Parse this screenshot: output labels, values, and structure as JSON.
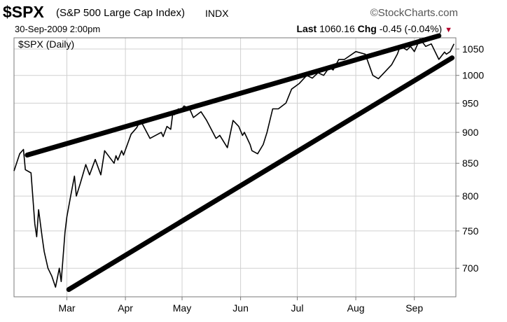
{
  "header": {
    "symbol": "$SPX",
    "name": "(S&P 500 Large Cap Index)",
    "exchange": "INDX",
    "brand": "©StockCharts.com",
    "datetime": "30-Sep-2009 2:00pm",
    "last_label": "Last",
    "last_value": "1060.16",
    "chg_label": "Chg",
    "chg_value": "-0.45 (-0.04%)",
    "chg_arrow": "▼",
    "panel_label": "$SPX (Daily)"
  },
  "colors": {
    "price": "#000000",
    "trend": "#000000",
    "grid": "#d0d0d0",
    "frame": "#7a7a7a",
    "down": "#b2002a"
  },
  "chart_data": {
    "type": "line",
    "title": "$SPX (S&P 500 Large Cap Index)",
    "scale": "log",
    "ylim": [
      664,
      1072
    ],
    "y_ticks": [
      700,
      750,
      800,
      850,
      900,
      950,
      1000,
      1050
    ],
    "x_ticks": [
      "Mar",
      "Apr",
      "May",
      "Jun",
      "Jul",
      "Aug",
      "Sep"
    ],
    "x_tick_days": [
      28,
      59,
      89,
      120,
      150,
      181,
      212
    ],
    "grid": true,
    "x": [
      0,
      3,
      5,
      6,
      9,
      11,
      12,
      13,
      15,
      16,
      18,
      20,
      22,
      24,
      25,
      27,
      28,
      30,
      32,
      33,
      35,
      38,
      40,
      43,
      46,
      48,
      53,
      54,
      55,
      57,
      58,
      62,
      65,
      67,
      72,
      78,
      79,
      81,
      83,
      84,
      85,
      87,
      88,
      90,
      93,
      95,
      99,
      102,
      107,
      109,
      113,
      116,
      119,
      121,
      122,
      125,
      126,
      129,
      132,
      134,
      137,
      140,
      144,
      147,
      151,
      155,
      158,
      161,
      164,
      167,
      169,
      172,
      175,
      181,
      186,
      190,
      193,
      196,
      200,
      203,
      204,
      205,
      208,
      210,
      212,
      215,
      216,
      218,
      221,
      225,
      228,
      229,
      231,
      233
    ],
    "values": [
      838,
      865,
      872,
      840,
      835,
      760,
      742,
      780,
      740,
      722,
      700,
      690,
      676,
      700,
      683,
      748,
      770,
      800,
      830,
      800,
      818,
      848,
      832,
      856,
      832,
      870,
      850,
      862,
      855,
      870,
      863,
      897,
      908,
      920,
      890,
      900,
      893,
      910,
      905,
      930,
      930,
      940,
      935,
      945,
      940,
      925,
      935,
      920,
      890,
      895,
      875,
      920,
      910,
      895,
      900,
      880,
      870,
      865,
      880,
      900,
      940,
      940,
      950,
      975,
      985,
      1000,
      995,
      1005,
      1000,
      1015,
      1010,
      1030,
      1030,
      1045,
      1040,
      1000,
      994,
      1005,
      1020,
      1040,
      1050,
      1055,
      1048,
      1055,
      1045,
      1070,
      1065,
      1055,
      1060,
      1030,
      1044,
      1040,
      1045,
      1060
    ]
  },
  "trend_lines": [
    {
      "start": {
        "day": 7,
        "value": 863
      },
      "end": {
        "day": 225,
        "value": 1076
      }
    },
    {
      "start": {
        "day": 29,
        "value": 673
      },
      "end": {
        "day": 232,
        "value": 1033
      }
    }
  ]
}
